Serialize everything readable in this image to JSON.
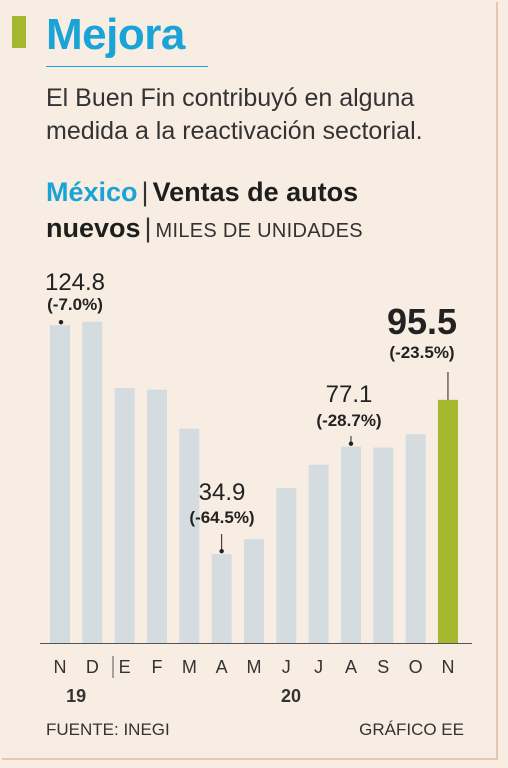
{
  "header": {
    "title": "Mejora",
    "subtitle": "El Buen Fin contribuyó en alguna medida a la reactivación sectorial.",
    "chart_heading_country": "México",
    "chart_heading_part1": "Ventas de autos",
    "chart_heading_part2": "nuevos",
    "chart_heading_unit": "MILES DE UNIDADES"
  },
  "footer": {
    "source": "FUENTE: INEGI",
    "credit": "GRÁFICO EE"
  },
  "colors": {
    "bar": "#d4dce0",
    "highlight": "#a3b82f",
    "title_blue": "#1aa3d6",
    "background": "#f8ede3"
  },
  "chart_data": {
    "type": "bar",
    "title": "Ventas de autos nuevos",
    "ylabel": "MILES DE UNIDADES",
    "categories": [
      "N",
      "D",
      "E",
      "F",
      "M",
      "A",
      "M",
      "J",
      "J",
      "A",
      "S",
      "O",
      "N"
    ],
    "year_labels": [
      {
        "label": "19",
        "start": 0,
        "end": 1
      },
      {
        "label": "20",
        "start": 2,
        "end": 12
      }
    ],
    "values": [
      124.8,
      126.2,
      100.1,
      99.5,
      84.2,
      34.9,
      40.8,
      60.9,
      70.0,
      77.1,
      76.8,
      82.0,
      95.5
    ],
    "ylim": [
      0,
      130
    ],
    "highlight_index": 12,
    "annotations": [
      {
        "index": 0,
        "value": "124.8",
        "change": "(-7.0%)"
      },
      {
        "index": 5,
        "value": "34.9",
        "change": "(-64.5%)"
      },
      {
        "index": 9,
        "value": "77.1",
        "change": "(-28.7%)"
      },
      {
        "index": 12,
        "value": "95.5",
        "change": "(-23.5%)"
      }
    ]
  }
}
